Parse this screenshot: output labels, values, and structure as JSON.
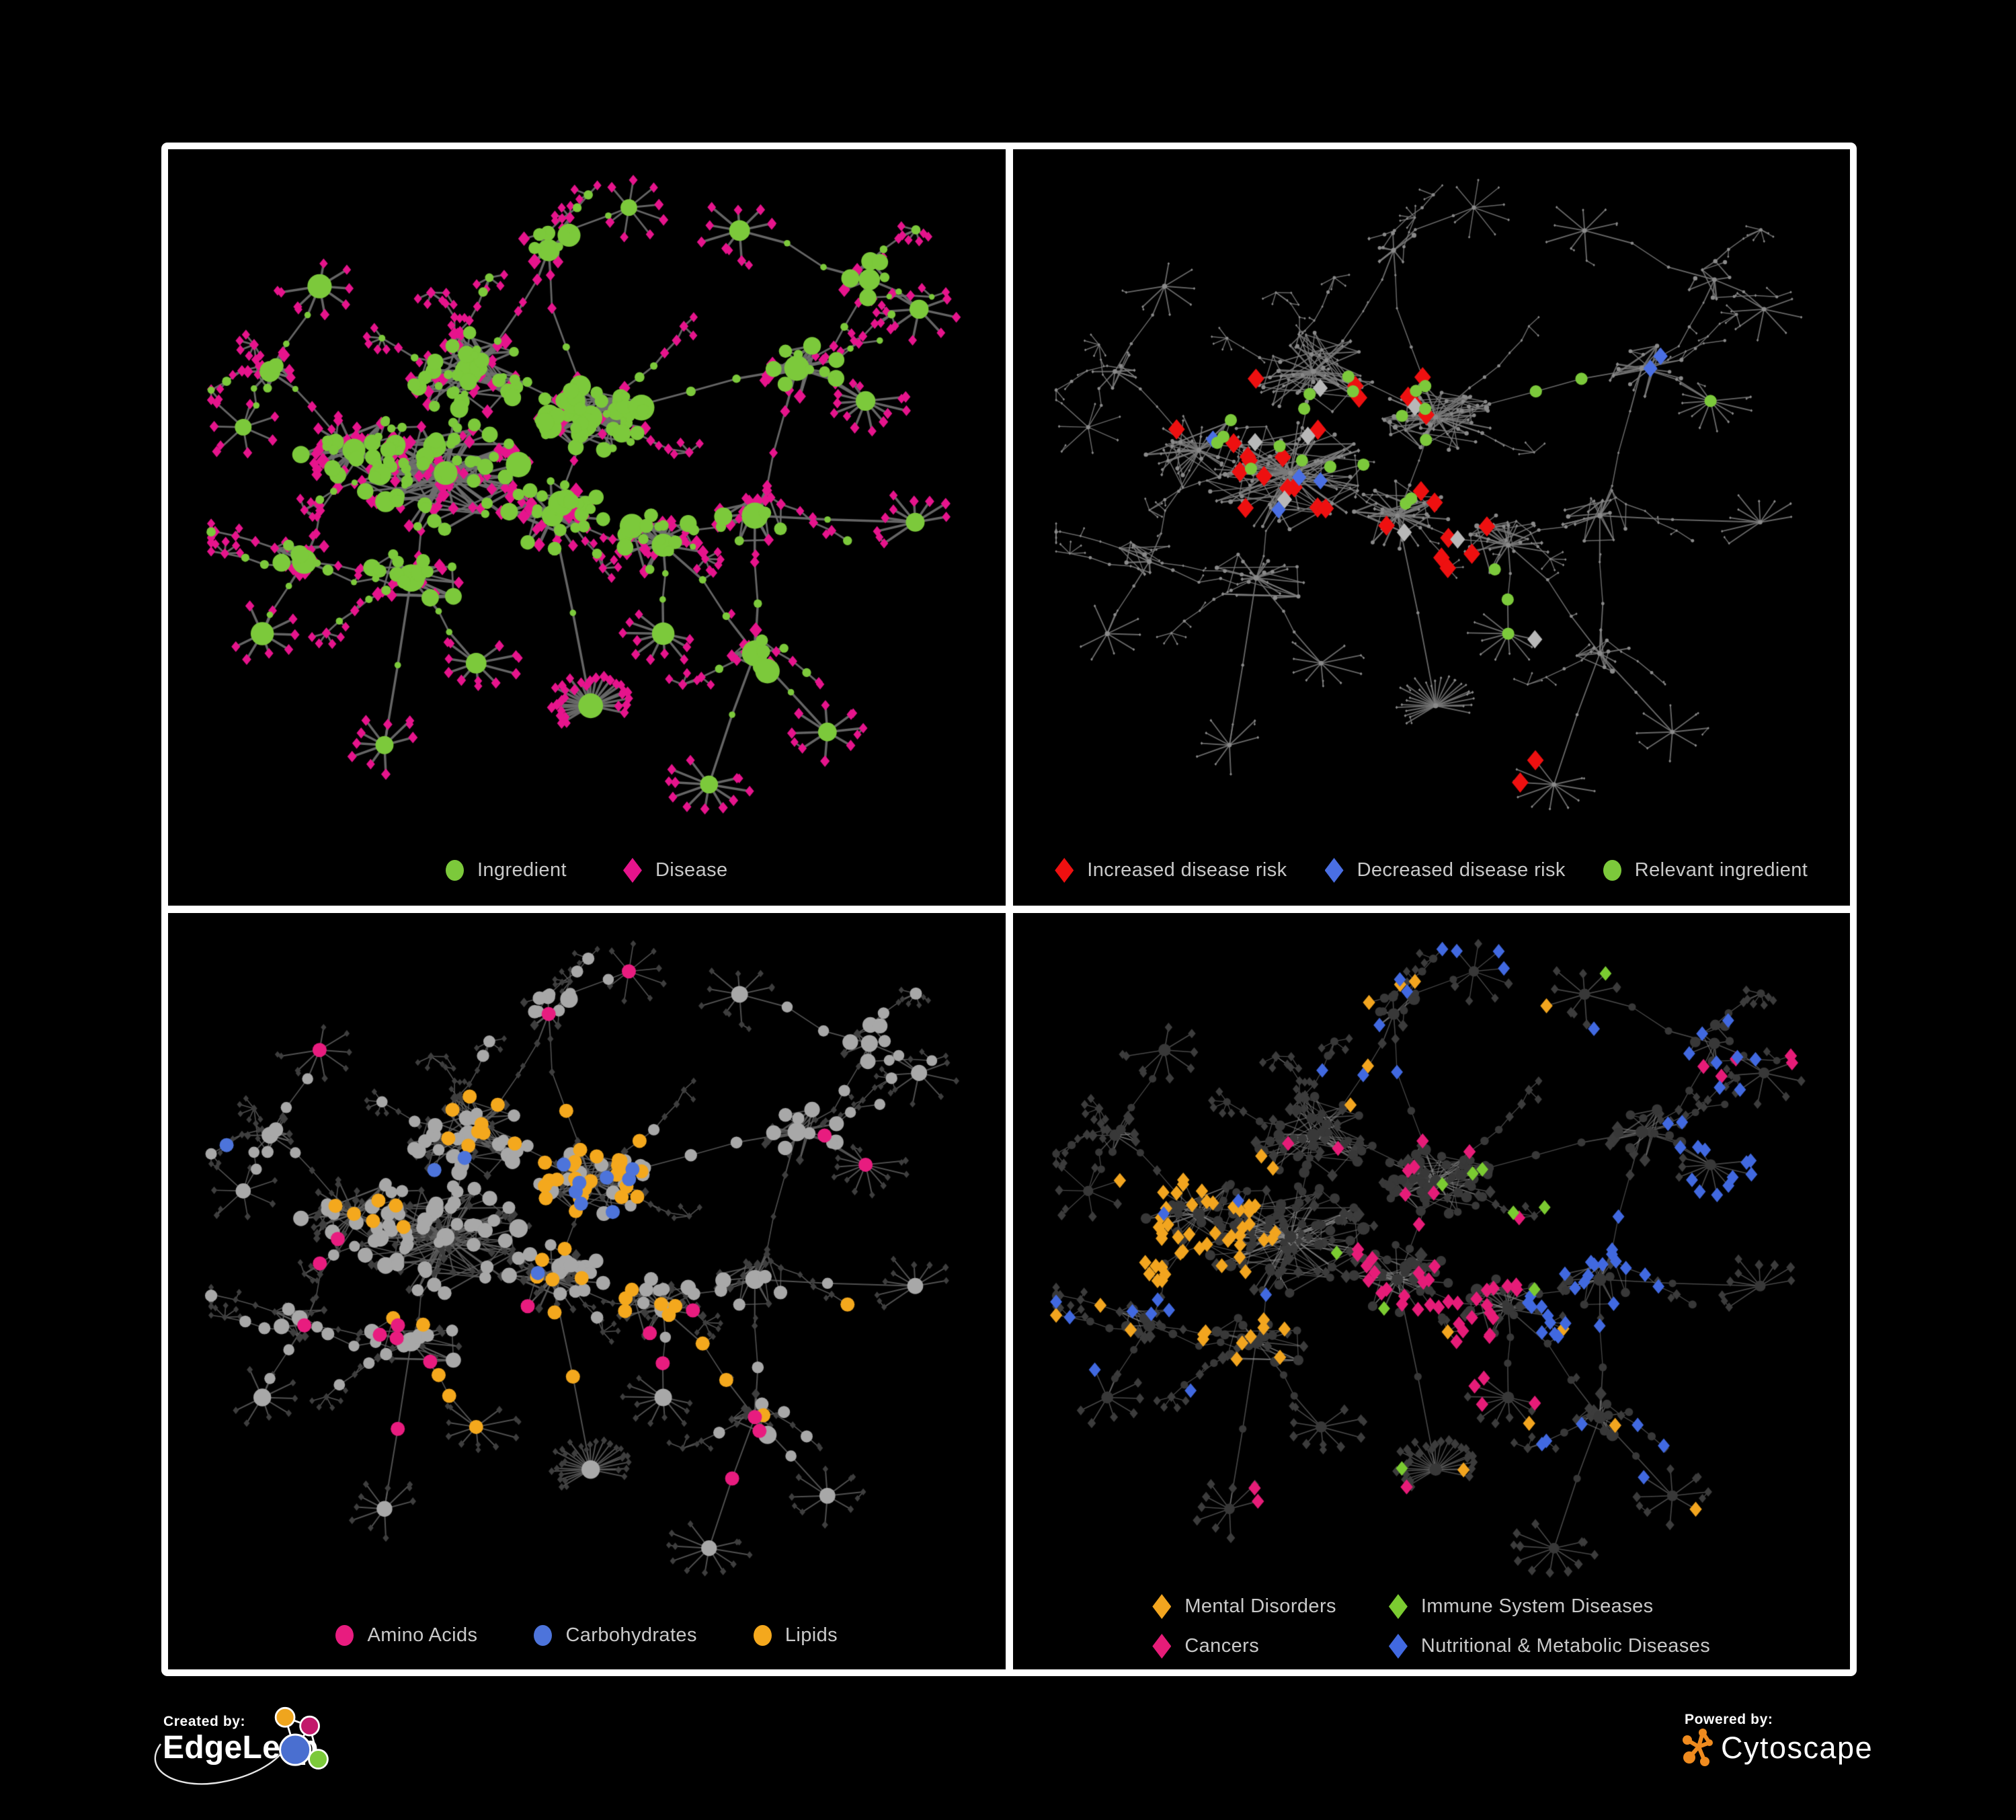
{
  "figure": {
    "background": "#000000",
    "frame_color": "#ffffff"
  },
  "footer": {
    "created_by": "Created by:",
    "created_brand": "EdgeLeap",
    "powered_by": "Powered by:",
    "powered_brand": "Cytoscape",
    "edgeleap_logo_colors": {
      "orange": "#EFA51E",
      "magenta": "#C2186B",
      "blue": "#4A6FD0",
      "green": "#7CC93B"
    },
    "cytoscape_logo_color": "#EF8B1F"
  },
  "panels": [
    {
      "id": "ingredient-disease",
      "legend": [
        {
          "label": "Ingredient",
          "shape": "circle",
          "color": "#7CC93B"
        },
        {
          "label": "Disease",
          "shape": "diamond",
          "color": "#E6148C"
        }
      ],
      "style": {
        "edge": "#6E6E6E",
        "edgeW": 2.8,
        "edgeAlpha": 0.92,
        "kinds": {
          "ingredient": {
            "fill": "#7CC93B",
            "scale": 1.15,
            "mode": "vary"
          },
          "disease": {
            "fill": "#E6148C",
            "scale": 1.22,
            "mode": "even"
          }
        },
        "highlights": []
      }
    },
    {
      "id": "disease-risk",
      "legend": [
        {
          "label": "Increased disease risk",
          "shape": "diamond",
          "color": "#EE1010"
        },
        {
          "label": "Decreased disease risk",
          "shape": "diamond",
          "color": "#4A6FE3"
        },
        {
          "label": "Relevant ingredient",
          "shape": "circle",
          "color": "#7CC93B"
        }
      ],
      "style": {
        "edge": "#7A7A7A",
        "edgeW": 1.5,
        "edgeAlpha": 0.85,
        "kinds": {
          "ingredient": {
            "fill": "#8A8A8A",
            "scale": 0.36,
            "mode": "even"
          },
          "disease": {
            "fill": "#8A8A8A",
            "scale": 0.33,
            "mode": "even"
          }
        },
        "highlights": [
          {
            "name": "increased-risk",
            "color": "#EE1010",
            "shape": "diamond",
            "kind": "disease",
            "scale": 2.15,
            "picks": [
              [
                0.24,
                0.28,
                0.34,
                0.3,
                24
              ],
              [
                0.5,
                0.52,
                0.14,
                0.14,
                3
              ],
              [
                0.52,
                0.8,
                0.14,
                0.14,
                2
              ],
              [
                0.1,
                0.36,
                0.09,
                0.08,
                1
              ],
              [
                0.6,
                0.3,
                0.12,
                0.1,
                2
              ]
            ]
          },
          {
            "name": "neutral-risk",
            "color": "#B8B8B8",
            "shape": "diamond",
            "kind": "disease",
            "scale": 1.95,
            "picks": [
              [
                0.26,
                0.3,
                0.28,
                0.22,
                5
              ],
              [
                0.44,
                0.54,
                0.14,
                0.1,
                2
              ],
              [
                0.58,
                0.66,
                0.1,
                0.08,
                1
              ]
            ]
          },
          {
            "name": "decreased-risk",
            "color": "#4A6FE3",
            "shape": "diamond",
            "kind": "disease",
            "scale": 1.85,
            "picks": [
              [
                0.77,
                0.22,
                0.1,
                0.08,
                2
              ],
              [
                0.26,
                0.4,
                0.1,
                0.12,
                3
              ],
              [
                0.21,
                0.33,
                0.07,
                0.08,
                1
              ]
            ]
          },
          {
            "name": "relevant-ingredient",
            "color": "#7CC93B",
            "shape": "circle",
            "kind": "ingredient",
            "scale": 1.3,
            "picks": [
              [
                0.3,
                0.27,
                0.24,
                0.24,
                15
              ],
              [
                0.18,
                0.3,
                0.1,
                0.16,
                4
              ],
              [
                0.54,
                0.6,
                0.1,
                0.1,
                3
              ],
              [
                0.11,
                0.34,
                0.06,
                0.06,
                1
              ],
              [
                0.6,
                0.28,
                0.16,
                0.14,
                2
              ],
              [
                0.84,
                0.3,
                0.08,
                0.08,
                1
              ]
            ]
          }
        ]
      }
    },
    {
      "id": "nutrient-classes",
      "legend": [
        {
          "label": "Amino Acids",
          "shape": "circle",
          "color": "#E81C7F"
        },
        {
          "label": "Carbohydrates",
          "shape": "circle",
          "color": "#4D74DB"
        },
        {
          "label": "Lipids",
          "shape": "circle",
          "color": "#F4A81D"
        }
      ],
      "style": {
        "edge": "#5F5F5F",
        "edgeW": 1.6,
        "edgeAlpha": 0.85,
        "kinds": {
          "ingredient": {
            "fill": "#A8A8A8",
            "scale": 1.3,
            "mode": "even"
          },
          "disease": {
            "fill": "#3E3E3E",
            "scale": 0.82,
            "mode": "even"
          }
        },
        "highlights": [
          {
            "name": "lipids",
            "color": "#F4A81D",
            "shape": "circle",
            "kind": "ingredient",
            "scale": 1.5,
            "picks": [
              [
                0.44,
                0.3,
                0.15,
                0.14,
                26
              ],
              [
                0.3,
                0.18,
                0.25,
                0.15,
                10
              ],
              [
                0.42,
                0.46,
                0.15,
                0.12,
                8
              ],
              [
                0.15,
                0.35,
                0.25,
                0.25,
                8
              ],
              [
                0.55,
                0.55,
                0.3,
                0.25,
                8
              ],
              [
                0.75,
                0.35,
                0.2,
                0.15,
                3
              ],
              [
                0.3,
                0.62,
                0.2,
                0.2,
                4
              ]
            ]
          },
          {
            "name": "carbohydrates",
            "color": "#4D74DB",
            "shape": "circle",
            "kind": "ingredient",
            "scale": 1.5,
            "picks": [
              [
                0.45,
                0.32,
                0.12,
                0.12,
                8
              ],
              [
                0.28,
                0.33,
                0.1,
                0.08,
                2
              ],
              [
                0.0,
                0.28,
                0.08,
                0.08,
                1
              ],
              [
                0.7,
                0.55,
                0.12,
                0.1,
                2
              ],
              [
                0.35,
                0.5,
                0.1,
                0.1,
                1
              ]
            ]
          },
          {
            "name": "amino-acids",
            "color": "#E81C7F",
            "shape": "circle",
            "kind": "ingredient",
            "scale": 1.5,
            "picks": [
              [
                0.05,
                0.42,
                0.2,
                0.25,
                4
              ],
              [
                0.25,
                0.55,
                0.25,
                0.25,
                5
              ],
              [
                0.45,
                0.55,
                0.3,
                0.3,
                6
              ],
              [
                0.4,
                0.0,
                0.2,
                0.12,
                2
              ],
              [
                0.78,
                0.25,
                0.18,
                0.15,
                2
              ],
              [
                0.1,
                0.0,
                0.2,
                0.2,
                1
              ],
              [
                0.85,
                0.55,
                0.12,
                0.3,
                2
              ]
            ]
          }
        ]
      }
    },
    {
      "id": "disease-categories",
      "legend": [
        {
          "label": "Mental Disorders",
          "shape": "diamond",
          "color": "#F2A51F"
        },
        {
          "label": "Immune System Diseases",
          "shape": "diamond",
          "color": "#7BCB31"
        },
        {
          "label": "Cancers",
          "shape": "diamond",
          "color": "#E61C78"
        },
        {
          "label": "Nutritional & Metabolic Diseases",
          "shape": "diamond",
          "color": "#4169E0"
        }
      ],
      "style": {
        "edge": "#8F8F8F",
        "edgeW": 1.3,
        "edgeAlpha": 0.5,
        "kinds": {
          "ingredient": {
            "fill": "#383838",
            "scale": 0.88,
            "mode": "even"
          },
          "disease": {
            "fill": "#3C3C3C",
            "scale": 1.12,
            "mode": "even"
          }
        },
        "highlights": [
          {
            "name": "mental-disorders",
            "color": "#F2A51F",
            "shape": "diamond",
            "kind": "disease",
            "scale": 1.6,
            "picks": [
              [
                0.08,
                0.33,
                0.22,
                0.2,
                48
              ],
              [
                0.2,
                0.55,
                0.15,
                0.13,
                10
              ],
              [
                0.0,
                0.52,
                0.12,
                0.12,
                3
              ],
              [
                0.3,
                0.0,
                0.4,
                0.3,
                6
              ],
              [
                0.5,
                0.55,
                0.35,
                0.35,
                6
              ]
            ]
          },
          {
            "name": "cancers",
            "color": "#E61C78",
            "shape": "diamond",
            "kind": "disease",
            "scale": 1.6,
            "picks": [
              [
                0.4,
                0.42,
                0.22,
                0.2,
                36
              ],
              [
                0.3,
                0.28,
                0.25,
                0.12,
                8
              ],
              [
                0.84,
                0.12,
                0.14,
                0.1,
                5
              ],
              [
                0.55,
                0.62,
                0.12,
                0.1,
                4
              ],
              [
                0.25,
                0.8,
                0.3,
                0.15,
                3
              ]
            ]
          },
          {
            "name": "nutritional-metabolic",
            "color": "#4169E0",
            "shape": "diamond",
            "kind": "disease",
            "scale": 1.55,
            "picks": [
              [
                0.6,
                0.42,
                0.2,
                0.2,
                26
              ],
              [
                0.7,
                0.08,
                0.28,
                0.3,
                16
              ],
              [
                0.83,
                0.3,
                0.15,
                0.12,
                8
              ],
              [
                0.35,
                0.0,
                0.3,
                0.22,
                10
              ],
              [
                0.05,
                0.33,
                0.25,
                0.25,
                7
              ],
              [
                0.55,
                0.7,
                0.35,
                0.25,
                6
              ],
              [
                0.0,
                0.55,
                0.2,
                0.2,
                4
              ]
            ]
          },
          {
            "name": "immune-system",
            "color": "#7BCB31",
            "shape": "diamond",
            "kind": "disease",
            "scale": 1.55,
            "picks": [
              [
                0.3,
                0.28,
                0.35,
                0.3,
                6
              ],
              [
                0.6,
                0.4,
                0.15,
                0.15,
                2
              ],
              [
                0.3,
                0.75,
                0.2,
                0.1,
                1
              ],
              [
                0.55,
                0.0,
                0.2,
                0.15,
                1
              ]
            ]
          }
        ]
      }
    }
  ],
  "network": {
    "description": "Same ingredient-disease association network layout repeated in all four panels with different colorings",
    "seed": 77,
    "clusters": [
      [
        0.315,
        0.455,
        85,
        0.075,
        0.45
      ],
      [
        0.345,
        0.3,
        50,
        0.055,
        0.5
      ],
      [
        0.505,
        0.37,
        60,
        0.05,
        0.8
      ],
      [
        0.195,
        0.42,
        38,
        0.05,
        0.5
      ],
      [
        0.455,
        0.52,
        40,
        0.048,
        0.5
      ],
      [
        0.6,
        0.565,
        26,
        0.04,
        0.5
      ],
      [
        0.27,
        0.615,
        24,
        0.045,
        0.5
      ],
      [
        0.775,
        0.295,
        16,
        0.038,
        0.45
      ],
      [
        0.72,
        0.52,
        16,
        0.035,
        0.45
      ],
      [
        0.13,
        0.59,
        11,
        0.032,
        0.5
      ],
      [
        0.45,
        0.115,
        9,
        0.03,
        0.5
      ],
      [
        0.72,
        0.73,
        11,
        0.032,
        0.45
      ],
      [
        0.085,
        0.3,
        8,
        0.028,
        0.5
      ],
      [
        0.87,
        0.16,
        8,
        0.028,
        0.45
      ]
    ],
    "chains": [
      [
        0,
        1
      ],
      [
        0,
        3
      ],
      [
        0,
        4
      ],
      [
        1,
        2
      ],
      [
        2,
        4
      ],
      [
        4,
        5
      ],
      [
        0,
        6
      ],
      [
        6,
        9
      ],
      [
        5,
        8
      ],
      [
        8,
        7
      ],
      [
        7,
        13
      ],
      [
        2,
        10
      ],
      [
        1,
        10
      ],
      [
        3,
        12
      ],
      [
        8,
        11
      ],
      [
        5,
        11
      ],
      [
        3,
        9
      ],
      [
        2,
        7
      ]
    ],
    "branches": [
      [
        1,
        250,
        4
      ],
      [
        1,
        280,
        5
      ],
      [
        1,
        305,
        4
      ],
      [
        10,
        260,
        3
      ],
      [
        10,
        300,
        3
      ],
      [
        2,
        330,
        5
      ],
      [
        2,
        20,
        4
      ],
      [
        7,
        300,
        4
      ],
      [
        7,
        350,
        4
      ],
      [
        13,
        320,
        3
      ],
      [
        13,
        20,
        3
      ],
      [
        8,
        10,
        4
      ],
      [
        11,
        60,
        4
      ],
      [
        11,
        100,
        4
      ],
      [
        5,
        120,
        3
      ],
      [
        6,
        160,
        4
      ],
      [
        6,
        120,
        5
      ],
      [
        9,
        190,
        4
      ],
      [
        9,
        230,
        4
      ],
      [
        3,
        180,
        4
      ],
      [
        12,
        220,
        3
      ],
      [
        12,
        150,
        3
      ],
      [
        0,
        150,
        4
      ],
      [
        4,
        80,
        3
      ],
      [
        2,
        60,
        3
      ],
      [
        1,
        220,
        3
      ],
      [
        0,
        110,
        4
      ],
      [
        5,
        40,
        3
      ]
    ],
    "fans": [
      [
        0.505,
        0.81,
        26,
        4
      ],
      [
        0.66,
        0.93,
        10,
        11
      ],
      [
        0.865,
        0.345,
        12,
        7
      ],
      [
        0.93,
        0.53,
        9,
        8
      ],
      [
        0.235,
        0.87,
        9,
        6
      ],
      [
        0.075,
        0.7,
        8,
        9
      ],
      [
        0.555,
        0.05,
        8,
        10
      ],
      [
        0.7,
        0.085,
        8,
        13
      ],
      [
        0.935,
        0.205,
        7,
        13
      ],
      [
        0.355,
        0.745,
        9,
        6
      ],
      [
        0.05,
        0.385,
        7,
        12
      ],
      [
        0.815,
        0.85,
        8,
        11
      ],
      [
        0.6,
        0.7,
        10,
        5
      ],
      [
        0.15,
        0.17,
        7,
        12
      ]
    ],
    "extra_edge_trials": 260
  }
}
